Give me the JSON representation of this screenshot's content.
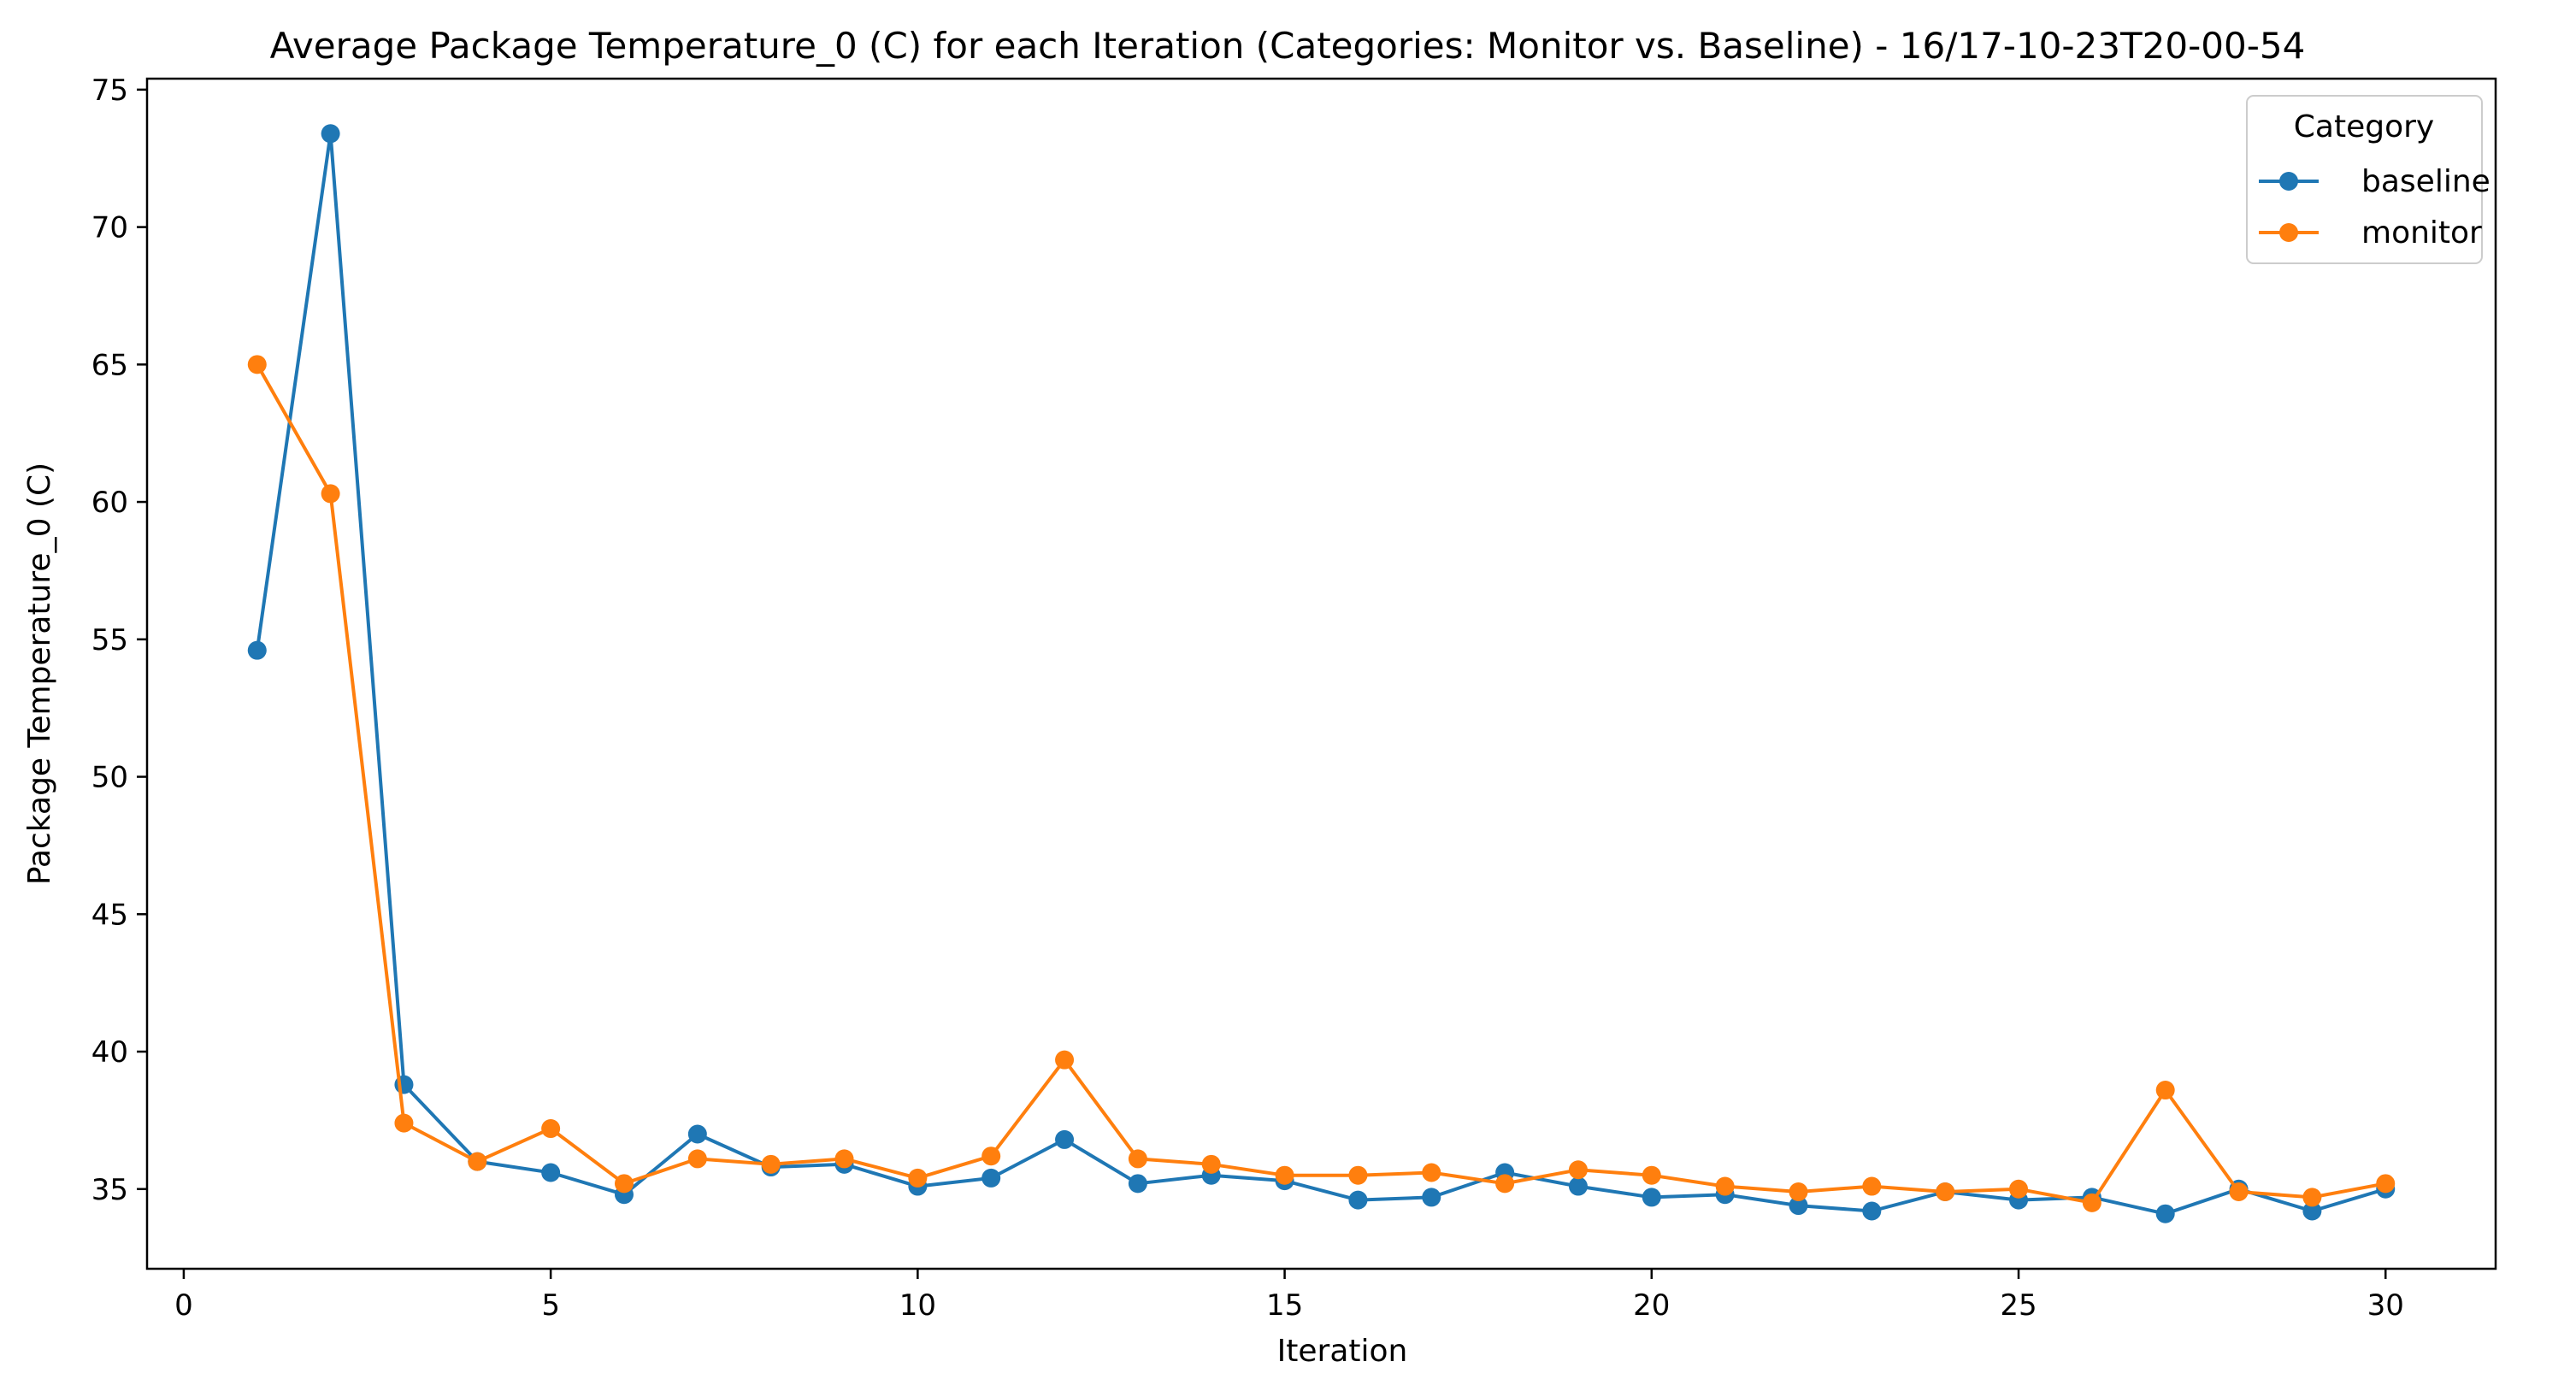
{
  "chart_data": {
    "type": "line",
    "title": "Average Package Temperature_0 (C) for each Iteration (Categories: Monitor vs. Baseline) - 16/17-10-23T20-00-54",
    "xlabel": "Iteration",
    "ylabel": "Package Temperature_0 (C)",
    "xlim": [
      -0.5,
      31.5
    ],
    "ylim": [
      32.1,
      75.4
    ],
    "x_ticks": [
      0,
      5,
      10,
      15,
      20,
      25,
      30
    ],
    "y_ticks": [
      35,
      40,
      45,
      50,
      55,
      60,
      65,
      70,
      75
    ],
    "grid": false,
    "legend": {
      "title": "Category",
      "placement": "top-right"
    },
    "x": [
      1,
      2,
      3,
      4,
      5,
      6,
      7,
      8,
      9,
      10,
      11,
      12,
      13,
      14,
      15,
      16,
      17,
      18,
      19,
      20,
      21,
      22,
      23,
      24,
      25,
      26,
      27,
      28,
      29,
      30
    ],
    "series": [
      {
        "name": "baseline",
        "color": "#1f77b4",
        "values": [
          54.6,
          73.4,
          38.8,
          36.0,
          35.6,
          34.8,
          37.0,
          35.8,
          35.9,
          35.1,
          35.4,
          36.8,
          35.2,
          35.5,
          35.3,
          34.6,
          34.7,
          35.6,
          35.1,
          34.7,
          34.8,
          34.4,
          34.2,
          34.9,
          34.6,
          34.7,
          34.1,
          35.0,
          34.2,
          35.0
        ]
      },
      {
        "name": "monitor",
        "color": "#ff7f0e",
        "values": [
          65.0,
          60.3,
          37.4,
          36.0,
          37.2,
          35.2,
          36.1,
          35.9,
          36.1,
          35.4,
          36.2,
          39.7,
          36.1,
          35.9,
          35.5,
          35.5,
          35.6,
          35.2,
          35.7,
          35.5,
          35.1,
          34.9,
          35.1,
          34.9,
          35.0,
          34.5,
          38.6,
          34.9,
          34.7,
          35.2
        ]
      }
    ]
  }
}
